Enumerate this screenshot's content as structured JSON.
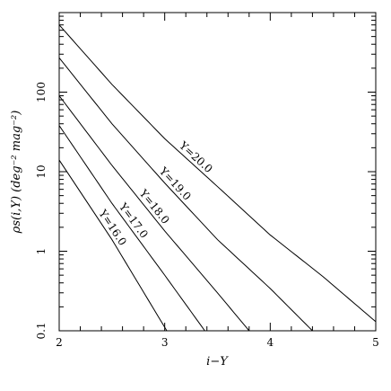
{
  "chart_data": {
    "type": "line",
    "xlabel": "i−Y",
    "ylabel": "ρs(i,Y) (deg⁻² mag⁻²)",
    "xlim": [
      2,
      5
    ],
    "ylim": [
      0.1,
      1000
    ],
    "yscale": "log",
    "grid": false,
    "x_ticks": [
      "2",
      "3",
      "4",
      "5"
    ],
    "y_ticks": [
      "0.1",
      "1",
      "10",
      "100"
    ],
    "series": [
      {
        "name": "Y=20.0",
        "x": [
          2.0,
          2.5,
          3.0,
          3.5,
          4.0,
          4.5,
          5.0
        ],
        "values": [
          700,
          125,
          26,
          6.5,
          1.6,
          0.48,
          0.13
        ]
      },
      {
        "name": "Y=19.0",
        "x": [
          2.0,
          2.5,
          3.0,
          3.5,
          4.0,
          4.4
        ],
        "values": [
          270,
          40,
          7.2,
          1.4,
          0.34,
          0.1
        ]
      },
      {
        "name": "Y=18.0",
        "x": [
          2.0,
          2.5,
          3.0,
          3.5,
          3.8
        ],
        "values": [
          90,
          12,
          1.8,
          0.3,
          0.1
        ]
      },
      {
        "name": "Y=17.0",
        "x": [
          2.0,
          2.5,
          3.0,
          3.38
        ],
        "values": [
          38,
          4.0,
          0.5,
          0.1
        ]
      },
      {
        "name": "Y=16.0",
        "x": [
          2.0,
          2.5,
          3.02
        ],
        "values": [
          14,
          1.4,
          0.1
        ]
      }
    ]
  }
}
